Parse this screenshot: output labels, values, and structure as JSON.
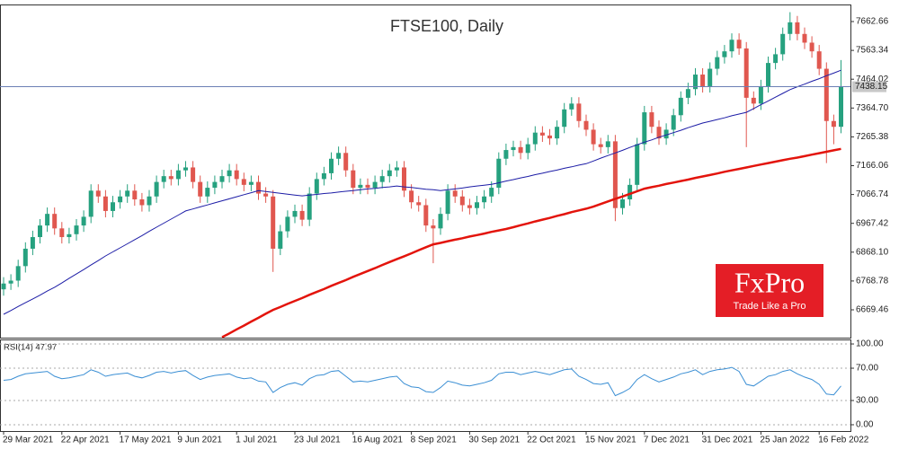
{
  "chart_data": [
    {
      "type": "candlestick",
      "title": "FTSE100, Daily",
      "categories": [
        "29 Mar 2021",
        null,
        null,
        null,
        null,
        null,
        null,
        null,
        "22 Apr 2021",
        null,
        null,
        null,
        null,
        null,
        null,
        null,
        "17 May 2021",
        null,
        null,
        null,
        null,
        null,
        null,
        null,
        "9 Jun 2021",
        null,
        null,
        null,
        null,
        null,
        null,
        null,
        "1 Jul 2021",
        null,
        null,
        null,
        null,
        null,
        null,
        null,
        "23 Jul 2021",
        null,
        null,
        null,
        null,
        null,
        null,
        null,
        "16 Aug 2021",
        null,
        null,
        null,
        null,
        null,
        null,
        null,
        "8 Sep 2021",
        null,
        null,
        null,
        null,
        null,
        null,
        null,
        "30 Sep 2021",
        null,
        null,
        null,
        null,
        null,
        null,
        null,
        "22 Oct 2021",
        null,
        null,
        null,
        null,
        null,
        null,
        null,
        "15 Nov 2021",
        null,
        null,
        null,
        null,
        null,
        null,
        null,
        "7 Dec 2021",
        null,
        null,
        null,
        null,
        null,
        null,
        null,
        "31 Dec 2021",
        null,
        null,
        null,
        null,
        null,
        null,
        null,
        "25 Jan 2022",
        null,
        null,
        null,
        null,
        null,
        null,
        null,
        "16 Feb 2022",
        null,
        null,
        null
      ],
      "open": [
        6740,
        6760,
        6770,
        6820,
        6880,
        6920,
        6960,
        7000,
        6950,
        6920,
        6930,
        6960,
        6990,
        7080,
        7060,
        7010,
        7040,
        7060,
        7080,
        7050,
        7030,
        7060,
        7110,
        7130,
        7120,
        7150,
        7160,
        7110,
        7060,
        7090,
        7110,
        7130,
        7150,
        7120,
        7100,
        7110,
        7070,
        7060,
        6880,
        6940,
        6990,
        7010,
        6980,
        7070,
        7120,
        7140,
        7190,
        7210,
        7150,
        7090,
        7100,
        7090,
        7110,
        7130,
        7150,
        7160,
        7080,
        7040,
        7030,
        6960,
        6950,
        7000,
        7080,
        7060,
        7030,
        7020,
        7040,
        7060,
        7090,
        7190,
        7220,
        7230,
        7210,
        7240,
        7280,
        7270,
        7260,
        7300,
        7360,
        7380,
        7320,
        7290,
        7240,
        7230,
        7250,
        7020,
        7050,
        7100,
        7240,
        7350,
        7300,
        7260,
        7290,
        7340,
        7400,
        7430,
        7480,
        7440,
        7500,
        7540,
        7560,
        7600,
        7570,
        7400,
        7380,
        7440,
        7520,
        7550,
        7620,
        7660,
        7620,
        7590,
        7560,
        7500,
        7320,
        7300
      ],
      "high": [
        6782,
        6792,
        6842,
        6902,
        6942,
        6982,
        7022,
        7022,
        6972,
        6952,
        6982,
        7012,
        7102,
        7102,
        7082,
        7062,
        7082,
        7102,
        7102,
        7072,
        7082,
        7132,
        7152,
        7152,
        7172,
        7182,
        7182,
        7132,
        7112,
        7132,
        7152,
        7172,
        7172,
        7142,
        7132,
        7132,
        7092,
        7082,
        6962,
        7012,
        7032,
        7032,
        7092,
        7142,
        7162,
        7212,
        7232,
        7232,
        7172,
        7122,
        7122,
        7132,
        7152,
        7172,
        7182,
        7182,
        7102,
        7062,
        7052,
        6982,
        7022,
        7102,
        7102,
        7082,
        7052,
        7062,
        7082,
        7112,
        7212,
        7242,
        7252,
        7252,
        7262,
        7302,
        7302,
        7292,
        7322,
        7382,
        7402,
        7402,
        7342,
        7312,
        7262,
        7272,
        7272,
        7072,
        7122,
        7262,
        7372,
        7372,
        7322,
        7312,
        7362,
        7422,
        7452,
        7502,
        7502,
        7522,
        7562,
        7582,
        7622,
        7622,
        7592,
        7422,
        7462,
        7542,
        7572,
        7642,
        7695,
        7682,
        7642,
        7612,
        7582,
        7522,
        7342,
        7530
      ],
      "low": [
        6718,
        6738,
        6748,
        6798,
        6858,
        6898,
        6938,
        6928,
        6898,
        6898,
        6908,
        6938,
        6968,
        7038,
        6988,
        6988,
        7018,
        7038,
        7028,
        7008,
        7008,
        7038,
        7088,
        7098,
        7098,
        7128,
        7088,
        7038,
        7038,
        7068,
        7088,
        7108,
        7098,
        7078,
        7078,
        7048,
        7038,
        6800,
        6858,
        6918,
        6968,
        6958,
        6958,
        7048,
        7098,
        7118,
        7168,
        7128,
        7068,
        7068,
        7068,
        7068,
        7088,
        7108,
        7128,
        7058,
        7018,
        7008,
        6938,
        6830,
        6928,
        6978,
        7038,
        7008,
        6998,
        6998,
        7018,
        7038,
        7068,
        7168,
        7198,
        7188,
        7188,
        7218,
        7248,
        7238,
        7238,
        7278,
        7338,
        7298,
        7268,
        7218,
        7208,
        7208,
        6975,
        6998,
        7028,
        7078,
        7218,
        7278,
        7238,
        7238,
        7268,
        7318,
        7378,
        7408,
        7418,
        7418,
        7478,
        7518,
        7538,
        7548,
        7230,
        7358,
        7358,
        7418,
        7498,
        7528,
        7598,
        7598,
        7568,
        7538,
        7478,
        7175,
        7240,
        7278
      ],
      "close": [
        6760,
        6770,
        6820,
        6880,
        6920,
        6960,
        7000,
        6950,
        6920,
        6930,
        6960,
        6990,
        7080,
        7060,
        7010,
        7040,
        7060,
        7080,
        7050,
        7030,
        7060,
        7110,
        7130,
        7120,
        7150,
        7160,
        7110,
        7060,
        7090,
        7110,
        7130,
        7150,
        7120,
        7100,
        7110,
        7070,
        7060,
        6880,
        6940,
        6990,
        7010,
        6980,
        7070,
        7120,
        7140,
        7190,
        7210,
        7150,
        7090,
        7100,
        7090,
        7110,
        7130,
        7150,
        7160,
        7080,
        7040,
        7030,
        6960,
        6950,
        7000,
        7080,
        7060,
        7030,
        7020,
        7040,
        7060,
        7090,
        7190,
        7220,
        7230,
        7210,
        7240,
        7280,
        7270,
        7260,
        7300,
        7360,
        7380,
        7320,
        7290,
        7240,
        7230,
        7250,
        7020,
        7050,
        7100,
        7240,
        7350,
        7300,
        7260,
        7290,
        7340,
        7400,
        7430,
        7480,
        7440,
        7500,
        7540,
        7560,
        7600,
        7570,
        7400,
        7380,
        7440,
        7520,
        7550,
        7620,
        7660,
        7620,
        7590,
        7560,
        7500,
        7320,
        7300,
        7438
      ],
      "up_color": "#26a17f",
      "down_color": "#e0574f",
      "overlays": [
        {
          "color": "#1c1ca6",
          "values": [
            6654,
            6667,
            6681,
            6694,
            6707,
            6720,
            6734,
            6747,
            6762,
            6778,
            6793,
            6808,
            6824,
            6839,
            6855,
            6869,
            6883,
            6897,
            6911,
            6925,
            6940,
            6954,
            6968,
            6982,
            6996,
            7010,
            7017,
            7024,
            7031,
            7038,
            7045,
            7052,
            7059,
            7066,
            7073,
            7080,
            7077,
            7074,
            7071,
            7068,
            7065,
            7062,
            7065,
            7067,
            7070,
            7072,
            7075,
            7078,
            7080,
            7083,
            7086,
            7088,
            7091,
            7093,
            7096,
            7093,
            7091,
            7088,
            7085,
            7083,
            7080,
            7083,
            7086,
            7089,
            7093,
            7096,
            7099,
            7102,
            7107,
            7113,
            7118,
            7124,
            7129,
            7135,
            7140,
            7146,
            7151,
            7157,
            7162,
            7168,
            7173,
            7182,
            7192,
            7201,
            7210,
            7219,
            7229,
            7238,
            7247,
            7255,
            7264,
            7272,
            7280,
            7288,
            7297,
            7305,
            7313,
            7319,
            7325,
            7331,
            7338,
            7344,
            7350,
            7363,
            7376,
            7389,
            7402,
            7415,
            7428,
            7438,
            7447,
            7457,
            7466,
            7476,
            7485,
            7495
          ]
        },
        {
          "color": "#e3140c",
          "values": [
            null,
            null,
            null,
            null,
            null,
            null,
            null,
            null,
            null,
            null,
            null,
            null,
            null,
            null,
            null,
            null,
            null,
            null,
            null,
            null,
            null,
            null,
            null,
            null,
            null,
            null,
            null,
            null,
            null,
            null,
            6575,
            6588,
            6602,
            6615,
            6629,
            6642,
            6656,
            6669,
            6679,
            6690,
            6700,
            6710,
            6721,
            6731,
            6741,
            6752,
            6762,
            6772,
            6783,
            6793,
            6803,
            6813,
            6824,
            6834,
            6844,
            6854,
            6864,
            6875,
            6885,
            6895,
            6900,
            6906,
            6911,
            6916,
            6922,
            6927,
            6932,
            6938,
            6943,
            6948,
            6954,
            6961,
            6967,
            6974,
            6980,
            6986,
            6993,
            6999,
            7006,
            7012,
            7018,
            7025,
            7034,
            7043,
            7052,
            7060,
            7069,
            7078,
            7087,
            7092,
            7097,
            7103,
            7108,
            7113,
            7118,
            7124,
            7129,
            7134,
            7139,
            7145,
            7150,
            7155,
            7160,
            7165,
            7170,
            7175,
            7180,
            7185,
            7190,
            7194,
            7199,
            7204,
            7209,
            7214,
            7219,
            7224
          ]
        }
      ],
      "last_price": 7438.15,
      "last_price_color": "#6b7fb5",
      "ylim": [
        6570.45,
        7721.45
      ],
      "yticks": [
        7662.66,
        7563.34,
        7464.02,
        {
          "value": 7364.7,
          "label": "7364.70"
        },
        7265.38,
        7166.06,
        7066.74,
        6967.42,
        {
          "value": 6868.1,
          "label": "6868.10"
        },
        6768.78,
        6669.46
      ]
    },
    {
      "type": "line",
      "title": "RSI(14) 47.97",
      "color": "#3b8fd4",
      "values": [
        55,
        56,
        60,
        63,
        64,
        65,
        66,
        60,
        57,
        58,
        60,
        62,
        68,
        65,
        60,
        62,
        63,
        64,
        60,
        58,
        61,
        65,
        66,
        64,
        66,
        67,
        61,
        56,
        59,
        61,
        62,
        63,
        59,
        57,
        58,
        54,
        53,
        40,
        46,
        50,
        52,
        49,
        57,
        61,
        62,
        66,
        67,
        60,
        53,
        54,
        53,
        55,
        57,
        59,
        60,
        51,
        47,
        46,
        41,
        40,
        46,
        54,
        52,
        49,
        48,
        50,
        52,
        55,
        63,
        65,
        65,
        62,
        64,
        66,
        64,
        62,
        65,
        68,
        69,
        60,
        56,
        51,
        50,
        52,
        36,
        40,
        45,
        56,
        62,
        57,
        53,
        56,
        59,
        63,
        65,
        68,
        62,
        66,
        68,
        69,
        71,
        66,
        50,
        48,
        54,
        60,
        62,
        66,
        68,
        63,
        59,
        56,
        50,
        38,
        37,
        47.97
      ],
      "ylim": [
        -7.8,
        105.6
      ],
      "yticks": [
        {
          "value": 100,
          "label": "100.00"
        },
        {
          "value": 70,
          "label": "70.00"
        },
        {
          "value": 30,
          "label": "30.00"
        },
        {
          "value": 0,
          "label": "0.00"
        }
      ]
    }
  ],
  "logo": {
    "brand": "FxPro",
    "tagline": "Trade Like a Pro"
  }
}
